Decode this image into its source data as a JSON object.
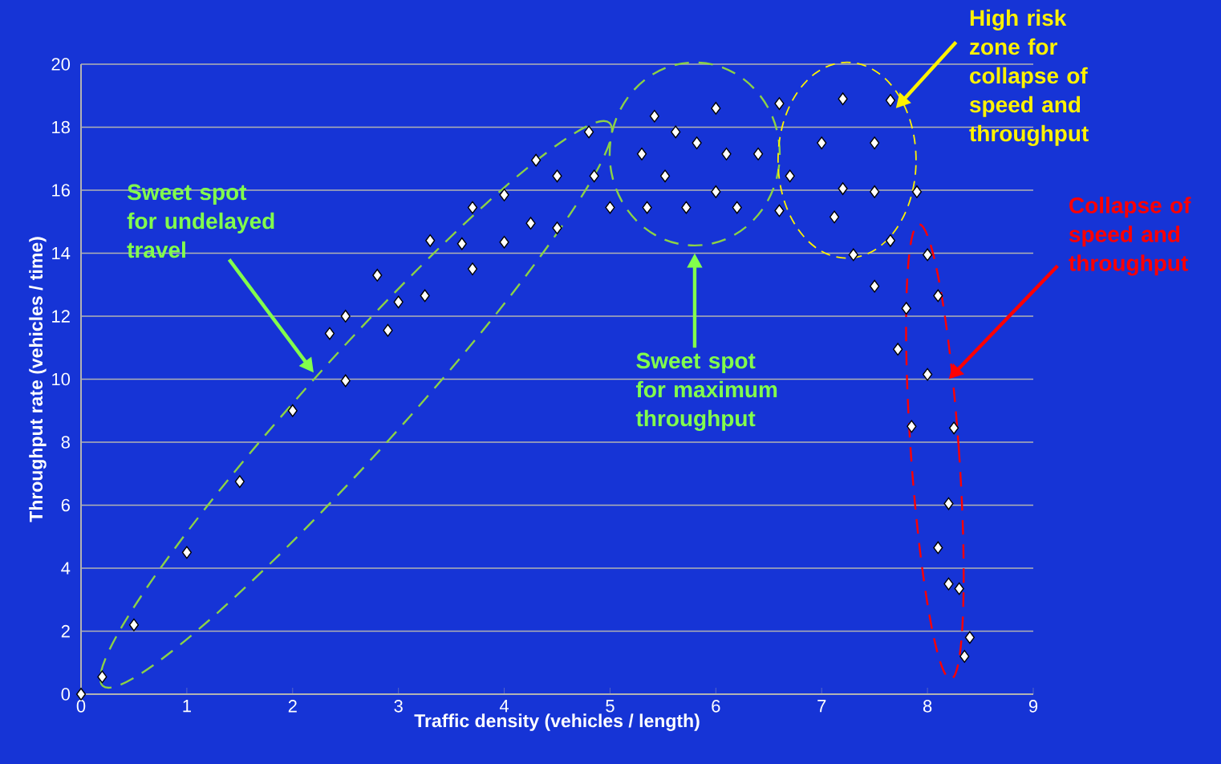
{
  "chart_data": {
    "type": "scatter",
    "xlabel": "Traffic density (vehicles / length)",
    "ylabel": "Throughput rate (vehicles / time)",
    "xlim": [
      0,
      9
    ],
    "ylim": [
      0,
      20
    ],
    "xticks": [
      0,
      1,
      2,
      3,
      4,
      5,
      6,
      7,
      8,
      9
    ],
    "yticks": [
      0,
      2,
      4,
      6,
      8,
      10,
      12,
      14,
      16,
      18,
      20
    ],
    "grid": "y",
    "marker": "diamond",
    "series": [
      {
        "color": "#ffffff",
        "x": [
          0.0,
          0.2,
          0.5,
          1.0,
          1.5,
          2.0,
          2.35,
          2.5,
          2.5,
          2.8,
          2.9,
          3.0,
          3.25,
          3.3,
          3.6,
          3.7,
          3.7,
          4.0,
          4.0,
          4.25,
          4.3,
          4.5,
          4.5,
          4.8,
          4.85,
          5.0,
          5.3,
          5.35,
          5.42,
          5.52,
          5.62,
          5.72,
          5.82,
          6.0,
          6.0,
          6.1,
          6.2,
          6.4,
          6.6,
          6.6,
          6.7,
          7.0,
          7.2,
          7.2,
          7.12,
          7.3,
          7.5,
          7.5,
          7.65,
          7.9,
          7.65,
          7.5,
          7.8,
          7.72,
          8.0,
          8.1,
          8.0,
          7.85,
          8.25,
          8.2,
          8.1,
          8.2,
          8.3,
          8.4,
          8.35
        ],
        "values": [
          0,
          0.55,
          2.2,
          4.5,
          6.75,
          9.0,
          11.45,
          12.0,
          9.95,
          13.3,
          11.55,
          12.45,
          12.65,
          14.4,
          14.3,
          13.5,
          15.45,
          15.85,
          14.35,
          14.95,
          16.95,
          16.45,
          14.8,
          17.85,
          16.45,
          15.45,
          17.15,
          15.45,
          18.35,
          16.45,
          17.85,
          15.45,
          17.5,
          15.95,
          18.6,
          17.15,
          15.45,
          17.15,
          18.75,
          15.35,
          16.45,
          17.5,
          18.9,
          16.05,
          15.15,
          13.95,
          17.5,
          15.95,
          18.85,
          15.95,
          14.4,
          12.95,
          12.25,
          10.95,
          13.95,
          12.65,
          10.15,
          8.5,
          8.45,
          6.05,
          4.65,
          3.5,
          3.35,
          1.8,
          1.2
        ]
      }
    ],
    "annotations": [
      "Sweet spot for undelayed travel",
      "Sweet spot for maximum throughput",
      "High risk zone for collapse of speed and throughput",
      "Collapse of speed and throughput"
    ]
  }
}
